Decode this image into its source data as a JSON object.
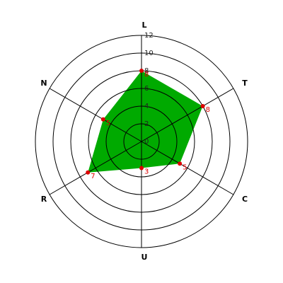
{
  "chart_data": {
    "type": "radar",
    "categories": [
      "L",
      "T",
      "C",
      "U",
      "R",
      "N"
    ],
    "values": [
      8,
      8,
      5,
      3,
      7,
      5
    ],
    "color": "#00aa00",
    "point_color": "#dd0000",
    "ylim": [
      0,
      12
    ],
    "yticks": [
      0,
      2,
      4,
      6,
      8,
      10,
      12
    ],
    "grid": true
  }
}
